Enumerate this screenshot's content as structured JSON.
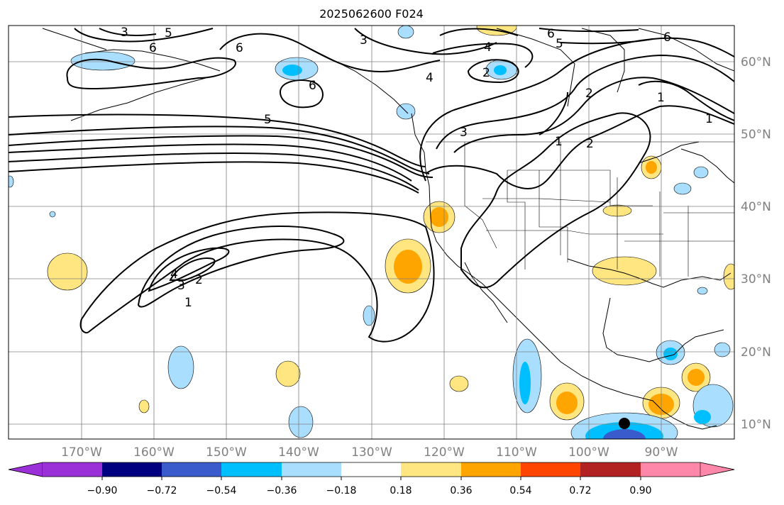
{
  "title": "2025062600 F024",
  "map": {
    "lon_labels": [
      "170°W",
      "160°W",
      "150°W",
      "140°W",
      "130°W",
      "120°W",
      "110°W",
      "100°W",
      "90°W"
    ],
    "lat_labels": [
      "60°N",
      "50°N",
      "40°N",
      "30°N",
      "20°N",
      "10°N"
    ],
    "contour_labels": [
      "3",
      "5",
      "6",
      "6",
      "3",
      "4",
      "6",
      "5",
      "6",
      "1",
      "4",
      "2",
      "5",
      "6",
      "3",
      "2",
      "1",
      "2",
      "1",
      "4",
      "3",
      "2",
      "1"
    ],
    "land_color": "#ffffff",
    "coast_color": "#000000",
    "grid_color": "#808080"
  },
  "colorbar": {
    "tick_labels": [
      "−0.90",
      "−0.72",
      "−0.54",
      "−0.36",
      "−0.18",
      "0.18",
      "0.36",
      "0.54",
      "0.72",
      "0.90"
    ],
    "colors": [
      "#9b30d9",
      "#000080",
      "#3a5bcb",
      "#00bfff",
      "#aadeff",
      "#ffffff",
      "#ffe680",
      "#ffa500",
      "#ff4500",
      "#b22222",
      "#ff88aa"
    ]
  }
}
